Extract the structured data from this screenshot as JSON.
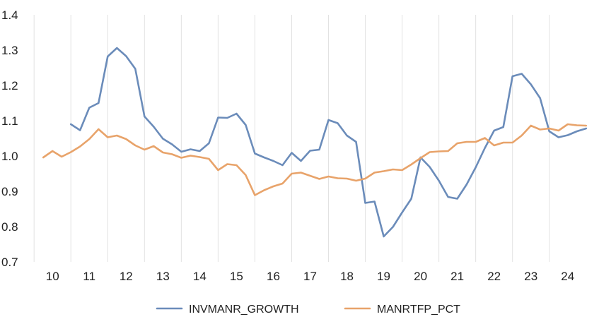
{
  "chart_data": {
    "type": "line",
    "title": "",
    "xlabel": "",
    "ylabel": "",
    "x_tick_labels": [
      "10",
      "11",
      "12",
      "13",
      "14",
      "15",
      "16",
      "17",
      "18",
      "19",
      "20",
      "21",
      "22",
      "23",
      "24"
    ],
    "x_range": [
      2009.65,
      2024.85
    ],
    "y_tick_labels": [
      "1.4",
      "1.3",
      "1.2",
      "1.1",
      "1.0",
      "0.9",
      "0.8",
      "0.7"
    ],
    "ylim": [
      0.7,
      1.4
    ],
    "grid": "vertical gridlines at year ticks",
    "legend": "bottom-center",
    "series": [
      {
        "name": "INVMANR_GROWTH",
        "color": "#6b8cba",
        "points": [
          [
            2010.5,
            1.09
          ],
          [
            2010.75,
            1.073
          ],
          [
            2011.0,
            1.137
          ],
          [
            2011.25,
            1.15
          ],
          [
            2011.5,
            1.282
          ],
          [
            2011.75,
            1.306
          ],
          [
            2012.0,
            1.283
          ],
          [
            2012.25,
            1.247
          ],
          [
            2012.5,
            1.112
          ],
          [
            2012.75,
            1.083
          ],
          [
            2013.0,
            1.049
          ],
          [
            2013.25,
            1.033
          ],
          [
            2013.5,
            1.012
          ],
          [
            2013.75,
            1.019
          ],
          [
            2014.0,
            1.014
          ],
          [
            2014.25,
            1.036
          ],
          [
            2014.5,
            1.109
          ],
          [
            2014.75,
            1.108
          ],
          [
            2015.0,
            1.12
          ],
          [
            2015.25,
            1.088
          ],
          [
            2015.5,
            1.007
          ],
          [
            2015.75,
            0.996
          ],
          [
            2016.0,
            0.986
          ],
          [
            2016.25,
            0.974
          ],
          [
            2016.5,
            1.009
          ],
          [
            2016.75,
            0.986
          ],
          [
            2017.0,
            1.015
          ],
          [
            2017.25,
            1.018
          ],
          [
            2017.5,
            1.102
          ],
          [
            2017.75,
            1.093
          ],
          [
            2018.0,
            1.058
          ],
          [
            2018.25,
            1.04
          ],
          [
            2018.5,
            0.867
          ],
          [
            2018.75,
            0.871
          ],
          [
            2019.0,
            0.772
          ],
          [
            2019.25,
            0.799
          ],
          [
            2019.5,
            0.84
          ],
          [
            2019.75,
            0.879
          ],
          [
            2020.0,
            0.996
          ],
          [
            2020.25,
            0.969
          ],
          [
            2020.5,
            0.93
          ],
          [
            2020.75,
            0.884
          ],
          [
            2021.0,
            0.879
          ],
          [
            2021.25,
            0.919
          ],
          [
            2021.5,
            0.968
          ],
          [
            2021.75,
            1.023
          ],
          [
            2022.0,
            1.072
          ],
          [
            2022.25,
            1.082
          ],
          [
            2022.5,
            1.226
          ],
          [
            2022.75,
            1.233
          ],
          [
            2023.0,
            1.203
          ],
          [
            2023.25,
            1.164
          ],
          [
            2023.5,
            1.07
          ],
          [
            2023.75,
            1.053
          ],
          [
            2024.0,
            1.059
          ],
          [
            2024.25,
            1.07
          ],
          [
            2024.5,
            1.078
          ]
        ]
      },
      {
        "name": "MANRTFP_PCT",
        "color": "#e8a36a",
        "points": [
          [
            2009.75,
            0.996
          ],
          [
            2010.0,
            1.014
          ],
          [
            2010.25,
            0.998
          ],
          [
            2010.5,
            1.011
          ],
          [
            2010.75,
            1.027
          ],
          [
            2011.0,
            1.048
          ],
          [
            2011.25,
            1.076
          ],
          [
            2011.5,
            1.053
          ],
          [
            2011.75,
            1.058
          ],
          [
            2012.0,
            1.048
          ],
          [
            2012.25,
            1.03
          ],
          [
            2012.5,
            1.018
          ],
          [
            2012.75,
            1.028
          ],
          [
            2013.0,
            1.01
          ],
          [
            2013.25,
            1.005
          ],
          [
            2013.5,
            0.995
          ],
          [
            2013.75,
            1.001
          ],
          [
            2014.0,
            0.997
          ],
          [
            2014.25,
            0.992
          ],
          [
            2014.5,
            0.96
          ],
          [
            2014.75,
            0.977
          ],
          [
            2015.0,
            0.974
          ],
          [
            2015.25,
            0.946
          ],
          [
            2015.5,
            0.889
          ],
          [
            2015.75,
            0.903
          ],
          [
            2016.0,
            0.914
          ],
          [
            2016.25,
            0.922
          ],
          [
            2016.5,
            0.95
          ],
          [
            2016.75,
            0.953
          ],
          [
            2017.0,
            0.944
          ],
          [
            2017.25,
            0.935
          ],
          [
            2017.5,
            0.942
          ],
          [
            2017.75,
            0.937
          ],
          [
            2018.0,
            0.936
          ],
          [
            2018.25,
            0.93
          ],
          [
            2018.5,
            0.936
          ],
          [
            2018.75,
            0.953
          ],
          [
            2019.0,
            0.957
          ],
          [
            2019.25,
            0.962
          ],
          [
            2019.5,
            0.96
          ],
          [
            2019.75,
            0.976
          ],
          [
            2020.0,
            0.994
          ],
          [
            2020.25,
            1.011
          ],
          [
            2020.5,
            1.013
          ],
          [
            2020.75,
            1.014
          ],
          [
            2021.0,
            1.036
          ],
          [
            2021.25,
            1.04
          ],
          [
            2021.5,
            1.04
          ],
          [
            2021.75,
            1.051
          ],
          [
            2022.0,
            1.03
          ],
          [
            2022.25,
            1.038
          ],
          [
            2022.5,
            1.038
          ],
          [
            2022.75,
            1.058
          ],
          [
            2023.0,
            1.086
          ],
          [
            2023.25,
            1.075
          ],
          [
            2023.5,
            1.078
          ],
          [
            2023.75,
            1.072
          ],
          [
            2024.0,
            1.09
          ],
          [
            2024.25,
            1.087
          ],
          [
            2024.5,
            1.086
          ]
        ]
      }
    ]
  }
}
